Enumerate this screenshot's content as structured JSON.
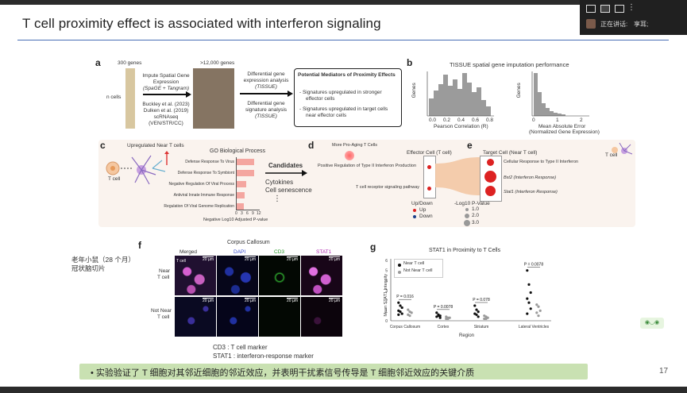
{
  "slide": {
    "title": "T cell proximity effect is associated with interferon signaling",
    "page_number": "17",
    "summary": "• 实验验证了 T 细胞对其邻近细胞的邻近效应，并表明干扰素信号传导是 T 细胞邻近效应的关键介质"
  },
  "meeting": {
    "speaking_label": "正在讲话: ",
    "speaker_name": "享耳;"
  },
  "panel_a": {
    "letter": "a",
    "genes_300": "300 genes",
    "genes_12000": ">12,000 genes",
    "n_cells": "n cells",
    "impute_l1": "Impute Spatial Gene",
    "impute_l2": "Expression",
    "impute_l3": "(SpaGE + Tangram)",
    "ref_l1": "Buckley et al. (2023)",
    "ref_l2": "Dulken et al. (2019)",
    "ref_l3": "scRNAseq",
    "ref_l4": "(VEN/STR/CC)",
    "dge_l1": "Differential gene",
    "dge_l2": "expression analysis",
    "dge_l3": "(TISSUE)",
    "dgs_l1": "Differential gene",
    "dgs_l2": "signature analysis",
    "dgs_l3": "(TISSUE)",
    "box_title": "Potential Mediators of Proximity Effects",
    "box_l1": "- Signatures upregulated in stronger",
    "box_l2": "effector cells",
    "box_l3": "- Signatures upregulated in target cells",
    "box_l4": "near effector cells"
  },
  "panel_b": {
    "letter": "b",
    "title": "TISSUE spatial gene imputation performance",
    "left_ylabel": "Genes",
    "left_xlabel": "Pearson Correlation (R)",
    "left_ticks": [
      "0.0",
      "0.2",
      "0.4",
      "0.6",
      "0.8"
    ],
    "right_ylabel": "Genes",
    "right_xlabel_l1": "Mean Absolute Error",
    "right_xlabel_l2": "(Normalized Gene Expression)",
    "right_ticks": [
      "0",
      "1",
      "2"
    ]
  },
  "panel_c": {
    "letter": "c",
    "upregulated": "Upregulated Near T cells",
    "tcell": "T cell",
    "go_title": "GO Biological Process",
    "terms": [
      {
        "label": "Defense Response To Virus",
        "value": 9.5
      },
      {
        "label": "Defense Response To Symbiont",
        "value": 9.3
      },
      {
        "label": "Negative Regulation Of Viral Process",
        "value": 5.0
      },
      {
        "label": "Antiviral Innate Immune Response",
        "value": 4.4
      },
      {
        "label": "Regulation Of Viral Genome Replication",
        "value": 3.9
      }
    ],
    "axis_ticks": [
      "0",
      "3",
      "6",
      "9",
      "12"
    ],
    "axis_label_l1": "Negative Log10 Adjusted P-value",
    "candidates": "Candidates",
    "cytokines": "Cytokines",
    "senescence": "Cell senescence",
    "dots": "⋮"
  },
  "panel_d": {
    "letter": "d",
    "pro_aging": "More Pro-Aging T Cells",
    "effector": "Effector Cell (T cell)",
    "row1": "Positive Regulation of Type II Interferon Production",
    "row2": "T cell receptor signaling pathway",
    "legend_title": "Up/Down",
    "legend_up": "Up",
    "legend_down": "Down",
    "pval_title": "-Log10 P-Value",
    "pval_1": "1.0",
    "pval_2": "2.0",
    "pval_3": "3.0"
  },
  "panel_e": {
    "letter": "e",
    "target": "Target Cell (Near T cell)",
    "tcell": "T cell",
    "row1": "Cellular Response to Type II Interferon",
    "row2": "Bst2 (Interferon Response)",
    "row3": "Stat1 (Interferon Response)"
  },
  "panel_f": {
    "letter": "f",
    "title": "Corpus Callosum",
    "mouse_l1": "老年小鼠（28 个月）",
    "mouse_l2": "冠状脑切片",
    "cols": [
      "Merged",
      "DAPI",
      "CD3",
      "STAT1"
    ],
    "row1_l1": "Near",
    "row1_l2": "T cell",
    "row2_l1": "Not Near",
    "row2_l2": "T cell",
    "scale": "20 µm",
    "tcell_tag": "T cell",
    "cd3_caption": "CD3 : T cell marker",
    "stat1_caption": "STAT1 : interferon-response marker"
  },
  "panel_g": {
    "letter": "g",
    "title": "STAT1 in Proximity to T Cells",
    "ylabel": "Mean STAT1 Intensity",
    "xlabel": "Region",
    "legend_near": "Near T cell",
    "legend_not": "Not Near T cell",
    "colors": {
      "near": "#111111",
      "not_near": "#9a9a9a"
    }
  },
  "chart_data": [
    {
      "type": "bar",
      "title": "GO Biological Process",
      "xlabel": "Negative Log10 Adjusted P-value",
      "categories": [
        "Defense Response To Virus",
        "Defense Response To Symbiont",
        "Negative Regulation Of Viral Process",
        "Antiviral Innate Immune Response",
        "Regulation Of Viral Genome Replication"
      ],
      "values": [
        9.5,
        9.3,
        5.0,
        4.4,
        3.9
      ],
      "xlim": [
        0,
        12
      ],
      "orientation": "horizontal"
    },
    {
      "type": "scatter",
      "title": "STAT1 in Proximity to T Cells",
      "xlabel": "Region",
      "ylabel": "Mean STAT1 Intensity",
      "ylim": [
        0,
        6
      ],
      "yticks": [
        "0",
        "1",
        "2",
        "3",
        "4",
        "5",
        "6"
      ],
      "categories": [
        "Corpus Callosum",
        "Cortex",
        "Striatum",
        "Lateral Ventricles"
      ],
      "pvalues": [
        "P = 0.016",
        "P = 0.0078",
        "P = 0.078",
        "P = 0.0078"
      ],
      "series": [
        {
          "name": "Near T cell",
          "values": [
            [
              1.8,
              1.5,
              1.3,
              1.0,
              0.9,
              0.7,
              0.6
            ],
            [
              0.8,
              0.6,
              0.5,
              0.4,
              0.5,
              0.3
            ],
            [
              1.5,
              1.1,
              0.9,
              0.7,
              0.6,
              0.4
            ],
            [
              5.0,
              3.6,
              2.8,
              2.2,
              1.8,
              1.2,
              0.7
            ]
          ]
        },
        {
          "name": "Not Near T cell",
          "values": [
            [
              1.1,
              0.9,
              0.8,
              0.6,
              0.5
            ],
            [
              0.4,
              0.3,
              0.3,
              0.2,
              0.2
            ],
            [
              0.5,
              0.4,
              0.3,
              0.2,
              0.2
            ],
            [
              1.6,
              1.4,
              1.0,
              0.8,
              0.5
            ]
          ]
        }
      ]
    }
  ]
}
